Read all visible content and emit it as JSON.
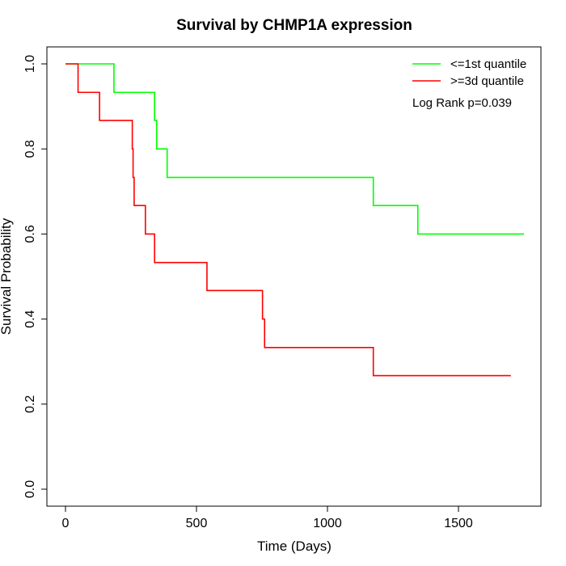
{
  "chart_data": {
    "type": "line",
    "title": "Survival by CHMP1A expression",
    "xlabel": "Time (Days)",
    "ylabel": "Survival Probability",
    "xlim": [
      0,
      1750
    ],
    "ylim": [
      0,
      1
    ],
    "x_ticks": [
      0,
      500,
      1000,
      1500
    ],
    "y_ticks": [
      0.0,
      0.2,
      0.4,
      0.6,
      0.8,
      1.0
    ],
    "x_tick_labels": [
      "0",
      "500",
      "1000",
      "1500"
    ],
    "y_tick_labels": [
      "0.0",
      "0.2",
      "0.4",
      "0.6",
      "0.8",
      "1.0"
    ],
    "grid": false,
    "legend_position": "top-right",
    "annotation": "Log Rank p=0.039",
    "series": [
      {
        "name": "<=1st quantile",
        "color": "#00ff00",
        "step": true,
        "points": [
          [
            0,
            1.0
          ],
          [
            185,
            1.0
          ],
          [
            185,
            0.933
          ],
          [
            340,
            0.933
          ],
          [
            340,
            0.867
          ],
          [
            348,
            0.867
          ],
          [
            348,
            0.8
          ],
          [
            388,
            0.8
          ],
          [
            388,
            0.733
          ],
          [
            1175,
            0.733
          ],
          [
            1175,
            0.667
          ],
          [
            1345,
            0.667
          ],
          [
            1345,
            0.6
          ],
          [
            1750,
            0.6
          ]
        ]
      },
      {
        "name": ">=3d quantile",
        "color": "#ff0000",
        "step": true,
        "points": [
          [
            0,
            1.0
          ],
          [
            48,
            1.0
          ],
          [
            48,
            0.933
          ],
          [
            130,
            0.933
          ],
          [
            130,
            0.867
          ],
          [
            255,
            0.867
          ],
          [
            255,
            0.8
          ],
          [
            258,
            0.8
          ],
          [
            258,
            0.733
          ],
          [
            262,
            0.733
          ],
          [
            262,
            0.667
          ],
          [
            305,
            0.667
          ],
          [
            305,
            0.6
          ],
          [
            340,
            0.6
          ],
          [
            340,
            0.533
          ],
          [
            540,
            0.533
          ],
          [
            540,
            0.467
          ],
          [
            752,
            0.467
          ],
          [
            752,
            0.4
          ],
          [
            760,
            0.4
          ],
          [
            760,
            0.333
          ],
          [
            1175,
            0.333
          ],
          [
            1175,
            0.267
          ],
          [
            1700,
            0.267
          ]
        ]
      }
    ]
  }
}
